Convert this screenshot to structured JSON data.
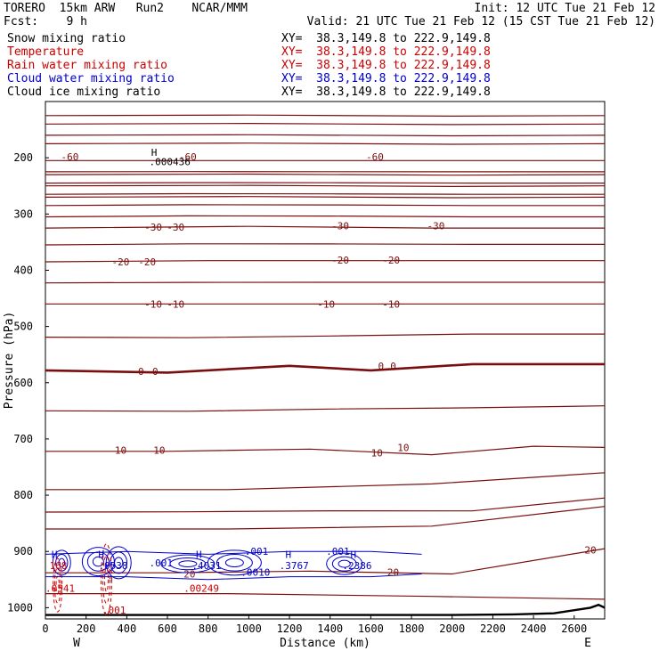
{
  "header": {
    "title_left": "TORERO  15km ARW   Run2    NCAR/MMM",
    "init": "Init: 12 UTC Tue 21 Feb 12",
    "fcst": "Fcst:    9 h",
    "valid": "Valid: 21 UTC Tue 21 Feb 12 (15 CST Tue 21 Feb 12)"
  },
  "fields": [
    {
      "name": "Snow mixing ratio",
      "color": "#000000",
      "xy": "XY=  38.3,149.8 to 222.9,149.8"
    },
    {
      "name": "Temperature",
      "color": "#cc0000",
      "xy": "XY=  38.3,149.8 to 222.9,149.8"
    },
    {
      "name": "Rain water mixing ratio",
      "color": "#cc0000",
      "xy": "XY=  38.3,149.8 to 222.9,149.8"
    },
    {
      "name": "Cloud water mixing ratio",
      "color": "#0000cc",
      "xy": "XY=  38.3,149.8 to 222.9,149.8"
    },
    {
      "name": "Cloud ice mixing ratio",
      "color": "#000000",
      "xy": "XY=  38.3,149.8 to 222.9,149.8"
    }
  ],
  "chart_data": {
    "type": "line",
    "xlabel": "Distance (km)",
    "ylabel": "Pressure (hPa)",
    "xlim": [
      0,
      2750
    ],
    "ylim": [
      1020,
      100
    ],
    "x_ticks": [
      0,
      200,
      400,
      600,
      800,
      1000,
      1200,
      1400,
      1600,
      1800,
      2000,
      2200,
      2400,
      2600
    ],
    "y_ticks": [
      200,
      300,
      400,
      500,
      600,
      700,
      800,
      900,
      1000
    ],
    "x_end_labels": {
      "left": "W",
      "right": "E"
    },
    "temperature_isotherms": [
      {
        "temp": -60,
        "x": [
          0,
          900,
          1800,
          2750
        ],
        "p": [
          205,
          205,
          205,
          205
        ]
      },
      {
        "temp": -30,
        "x": [
          0,
          1000,
          1900,
          2750
        ],
        "p": [
          325,
          322,
          325,
          325
        ]
      },
      {
        "temp": -20,
        "x": [
          0,
          800,
          1700,
          2750
        ],
        "p": [
          385,
          383,
          383,
          383
        ]
      },
      {
        "temp": -10,
        "x": [
          0,
          800,
          1800,
          2750
        ],
        "p": [
          460,
          460,
          460,
          460
        ]
      },
      {
        "temp": 0,
        "x": [
          0,
          600,
          1200,
          1600,
          2100,
          2750
        ],
        "p": [
          578,
          582,
          570,
          578,
          567,
          567
        ]
      },
      {
        "temp": 10,
        "x": [
          0,
          600,
          1300,
          1900,
          2400,
          2750
        ],
        "p": [
          722,
          722,
          718,
          728,
          713,
          715
        ]
      },
      {
        "temp": 20,
        "x": [
          0,
          600,
          1300,
          2000,
          2750
        ],
        "p": [
          938,
          938,
          935,
          940,
          895
        ]
      }
    ],
    "contour_labels": [
      {
        "text": "-60",
        "x": 120,
        "p": 198
      },
      {
        "text": "-60",
        "x": 700,
        "p": 198
      },
      {
        "text": "-60",
        "x": 1620,
        "p": 198
      },
      {
        "text": "-30",
        "x": 530,
        "p": 323
      },
      {
        "text": "-30",
        "x": 640,
        "p": 323
      },
      {
        "text": "-30",
        "x": 1450,
        "p": 321
      },
      {
        "text": "-30",
        "x": 1920,
        "p": 321
      },
      {
        "text": "-20",
        "x": 370,
        "p": 385
      },
      {
        "text": "-20",
        "x": 500,
        "p": 385
      },
      {
        "text": "-20",
        "x": 1450,
        "p": 382
      },
      {
        "text": "-20",
        "x": 1700,
        "p": 382
      },
      {
        "text": "-10",
        "x": 530,
        "p": 460
      },
      {
        "text": "-10",
        "x": 640,
        "p": 460
      },
      {
        "text": "-10",
        "x": 1380,
        "p": 460
      },
      {
        "text": "-10",
        "x": 1700,
        "p": 460
      },
      {
        "text": "0",
        "x": 470,
        "p": 580
      },
      {
        "text": "0",
        "x": 540,
        "p": 580
      },
      {
        "text": "0",
        "x": 1650,
        "p": 570
      },
      {
        "text": "0",
        "x": 1710,
        "p": 570
      },
      {
        "text": "10",
        "x": 370,
        "p": 720
      },
      {
        "text": "10",
        "x": 560,
        "p": 720
      },
      {
        "text": "10",
        "x": 1630,
        "p": 725
      },
      {
        "text": "10",
        "x": 1760,
        "p": 715
      },
      {
        "text": "20",
        "x": 1710,
        "p": 937
      },
      {
        "text": "20",
        "x": 2680,
        "p": 897
      }
    ],
    "field_annotations": [
      {
        "text": "H",
        "x": 520,
        "p": 190,
        "color": "#000000"
      },
      {
        "text": ".000436",
        "x": 510,
        "p": 207,
        "color": "#000000"
      },
      {
        "text": "H",
        "x": 30,
        "p": 905,
        "color": "#0000cc"
      },
      {
        "text": "168",
        "x": 20,
        "p": 925,
        "color": "#cc0000"
      },
      {
        "text": "H",
        "x": 260,
        "p": 905,
        "color": "#0000cc"
      },
      {
        "text": ".0538",
        "x": 260,
        "p": 925,
        "color": "#0000cc"
      },
      {
        "text": ".001",
        "x": 510,
        "p": 920,
        "color": "#0000cc"
      },
      {
        "text": "H",
        "x": 740,
        "p": 905,
        "color": "#0000cc"
      },
      {
        "text": ".4031",
        "x": 720,
        "p": 925,
        "color": "#0000cc"
      },
      {
        "text": ".001",
        "x": 980,
        "p": 900,
        "color": "#0000cc"
      },
      {
        "text": ".0010",
        "x": 960,
        "p": 937,
        "color": "#0000cc"
      },
      {
        "text": "H",
        "x": 1180,
        "p": 905,
        "color": "#0000cc"
      },
      {
        "text": ".3767",
        "x": 1150,
        "p": 925,
        "color": "#0000cc"
      },
      {
        "text": ".001",
        "x": 1380,
        "p": 900,
        "color": "#0000cc"
      },
      {
        "text": "H",
        "x": 1500,
        "p": 905,
        "color": "#0000cc"
      },
      {
        "text": ".2386",
        "x": 1460,
        "p": 925,
        "color": "#0000cc"
      },
      {
        "text": "20",
        "x": 680,
        "p": 940,
        "color": "#8b1a1a"
      },
      {
        "text": ".0541",
        "x": 0,
        "p": 965,
        "color": "#cc0000"
      },
      {
        "text": ".00249",
        "x": 680,
        "p": 965,
        "color": "#cc0000"
      },
      {
        "text": ".001",
        "x": 280,
        "p": 1004,
        "color": "#cc0000"
      }
    ]
  }
}
